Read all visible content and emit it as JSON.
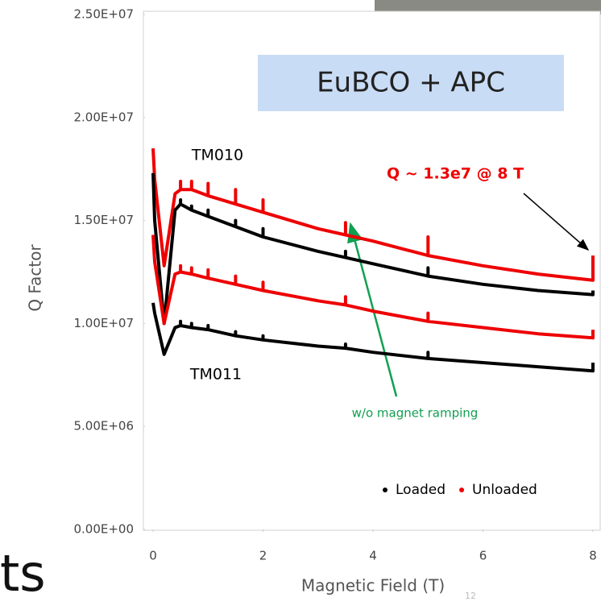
{
  "chart_data": {
    "type": "line",
    "x_label": "Magnetic Field (T)",
    "y_label": "Q Factor",
    "xlim": [
      0,
      8
    ],
    "xticks": [
      0,
      2,
      4,
      6,
      8
    ],
    "ylim": [
      0,
      25000000
    ],
    "yticks": [
      {
        "value": 0,
        "label": "0.00E+00"
      },
      {
        "value": 5000000,
        "label": "5.00E+06"
      },
      {
        "value": 10000000,
        "label": "1.00E+07"
      },
      {
        "value": 15000000,
        "label": "1.50E+07"
      },
      {
        "value": 20000000,
        "label": "2.00E+07"
      },
      {
        "value": 25000000,
        "label": "2.50E+07"
      }
    ],
    "x": [
      0,
      0.03,
      0.2,
      0.4,
      0.5,
      0.5,
      0.5,
      0.7,
      0.7,
      0.7,
      1,
      1,
      1,
      1.5,
      1.5,
      1.5,
      2,
      2,
      2,
      3,
      3.5,
      3.5,
      3.5,
      4,
      5,
      5,
      5,
      6,
      7,
      8,
      8
    ],
    "series": [
      {
        "color": "#ee0000",
        "values": [
          18500000.0,
          17000000.0,
          12800000.0,
          16300000.0,
          16500000.0,
          16900000.0,
          16500000.0,
          16500000.0,
          16900000.0,
          16500000.0,
          16200000.0,
          16800000.0,
          16200000.0,
          15800000.0,
          16500000.0,
          15800000.0,
          15400000.0,
          16000000.0,
          15400000.0,
          14600000.0,
          14300000.0,
          14900000.0,
          14300000.0,
          14000000.0,
          13300000.0,
          14200000.0,
          13300000.0,
          12800000.0,
          12400000.0,
          12100000.0,
          13300000.0
        ]
      },
      {
        "color": "#000000",
        "values": [
          17300000.0,
          15000000.0,
          10000000.0,
          15500000.0,
          15800000.0,
          16000000.0,
          15800000.0,
          15500000.0,
          15700000.0,
          15500000.0,
          15200000.0,
          15500000.0,
          15200000.0,
          14700000.0,
          15000000.0,
          14700000.0,
          14200000.0,
          14600000.0,
          14200000.0,
          13500000.0,
          13200000.0,
          13500000.0,
          13200000.0,
          12900000.0,
          12300000.0,
          12700000.0,
          12300000.0,
          11900000.0,
          11600000.0,
          11400000.0,
          11600000.0
        ]
      },
      {
        "color": "#ee0000",
        "values": [
          14300000.0,
          13000000.0,
          10000000.0,
          12400000.0,
          12500000.0,
          12800000.0,
          12500000.0,
          12400000.0,
          12700000.0,
          12400000.0,
          12200000.0,
          12600000.0,
          12200000.0,
          11900000.0,
          12300000.0,
          11900000.0,
          11600000.0,
          12000000.0,
          11600000.0,
          11100000.0,
          10900000.0,
          11300000.0,
          10900000.0,
          10600000.0,
          10100000.0,
          10500000.0,
          10100000.0,
          9800000.0,
          9500000.0,
          9300000.0,
          9700000.0
        ]
      },
      {
        "color": "#000000",
        "values": [
          11000000.0,
          10500000.0,
          8500000.0,
          9800000.0,
          9900000.0,
          10100000.0,
          9900000.0,
          9800000.0,
          10000000.0,
          9800000.0,
          9700000.0,
          9900000.0,
          9700000.0,
          9400000.0,
          9600000.0,
          9400000.0,
          9200000.0,
          9400000.0,
          9200000.0,
          8900000.0,
          8800000.0,
          9000000.0,
          8800000.0,
          8600000.0,
          8300000.0,
          8600000.0,
          8300000.0,
          8100000.0,
          7900000.0,
          7700000.0,
          8100000.0
        ]
      }
    ],
    "legend": [
      {
        "name": "Loaded",
        "color": "#000000"
      },
      {
        "name": "Unloaded",
        "color": "#ee0000"
      }
    ],
    "annotations": {
      "box": "EuBCO + APC",
      "tm010": "TM010",
      "tm011": "TM011",
      "q_note": "Q ~ 1.3e7 @ 8 T",
      "ramp_note": "w/o magnet ramping"
    },
    "slide_fragment": "ts",
    "slide_number": "12"
  }
}
